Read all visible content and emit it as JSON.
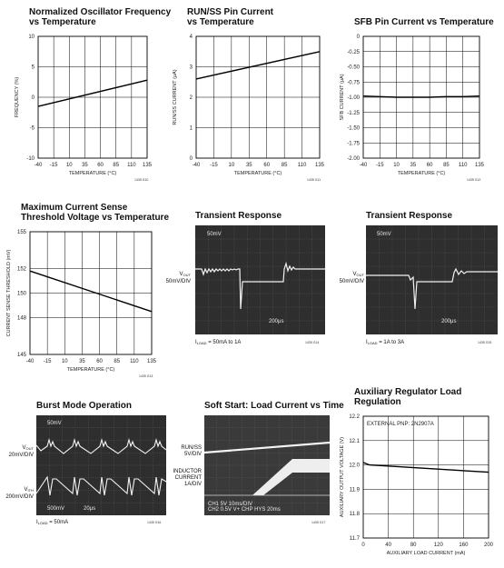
{
  "chart_data": [
    {
      "id": "p1",
      "type": "line",
      "title": [
        "Normalized Oscillator Frequency",
        "vs Temperature"
      ],
      "xlabel": "TEMPERATURE (°C)",
      "ylabel": "FREQUENCY (%)",
      "xlim": [
        -40,
        135
      ],
      "ylim": [
        -10,
        10
      ],
      "xticks": [
        "-40",
        "-15",
        "10",
        "35",
        "60",
        "85",
        "110",
        "135"
      ],
      "yticks": [
        "10",
        "5",
        "0",
        "-5",
        "-10"
      ],
      "series": [
        {
          "x": [
            -40,
            135
          ],
          "y": [
            -1.5,
            2.8
          ]
        }
      ],
      "code": "1435 G10"
    },
    {
      "id": "p2",
      "type": "line",
      "title": [
        "RUN/SS Pin Current",
        "vs Temperature"
      ],
      "xlabel": "TEMPERATURE (°C)",
      "ylabel": "RUN/SS CURRENT (μA)",
      "xlim": [
        -40,
        135
      ],
      "ylim": [
        0,
        4
      ],
      "xticks": [
        "-40",
        "-15",
        "10",
        "35",
        "60",
        "85",
        "110",
        "135"
      ],
      "yticks": [
        "4",
        "3",
        "2",
        "1",
        "0"
      ],
      "series": [
        {
          "x": [
            -40,
            135
          ],
          "y": [
            2.6,
            3.5
          ]
        }
      ],
      "code": "1435 G11"
    },
    {
      "id": "p3",
      "type": "line",
      "title": [
        "SFB Pin Current vs Temperature"
      ],
      "xlabel": "TEMPERATURE (°C)",
      "ylabel": "SFB CURRENT (μA)",
      "xlim": [
        -40,
        135
      ],
      "ylim": [
        -2.0,
        0
      ],
      "xticks": [
        "-40",
        "-15",
        "10",
        "35",
        "60",
        "85",
        "110",
        "135"
      ],
      "yticks": [
        "0",
        "-0.25",
        "-0.50",
        "-0.75",
        "-1.00",
        "-1.25",
        "-1.50",
        "-1.75",
        "-2.00"
      ],
      "series": [
        {
          "x": [
            -40,
            -15,
            10,
            35,
            60,
            85,
            110,
            135
          ],
          "y": [
            -0.98,
            -0.99,
            -1.0,
            -1.0,
            -1.0,
            -0.99,
            -0.99,
            -0.98
          ]
        }
      ],
      "code": "1435 G12"
    },
    {
      "id": "p4",
      "type": "line",
      "title": [
        "Maximum Current Sense",
        "Threshold Voltage vs Temperature"
      ],
      "xlabel": "TEMPERATURE (°C)",
      "ylabel": "CURRENT SENSE THRESHOLD (mV)",
      "xlim": [
        -40,
        135
      ],
      "ylim": [
        145,
        155
      ],
      "xticks": [
        "-40",
        "-15",
        "10",
        "35",
        "60",
        "85",
        "110",
        "135"
      ],
      "yticks": [
        "155",
        "152",
        "150",
        "148",
        "145"
      ],
      "ytickvals": [
        155,
        152,
        150,
        148,
        145
      ],
      "series": [
        {
          "x": [
            -40,
            135
          ],
          "y": [
            151.8,
            148.5
          ]
        }
      ],
      "code": "1435 G13"
    },
    {
      "id": "p9",
      "type": "line",
      "title": [
        "Auxiliary Regulator Load",
        "Regulation"
      ],
      "xlabel": "AUXILIARY LOAD CURRENT (mA)",
      "ylabel": "AUXILIARY OUTPUT VOLTAGE (V)",
      "xlim": [
        0,
        200
      ],
      "ylim": [
        11.7,
        12.2
      ],
      "xticks": [
        "0",
        "40",
        "80",
        "120",
        "160",
        "200"
      ],
      "yticks": [
        "12.2",
        "12.1",
        "12.0",
        "11.9",
        "11.8",
        "11.7"
      ],
      "annotation": "EXTERNAL PNP: 2N2907A",
      "series": [
        {
          "x": [
            0,
            10,
            200
          ],
          "y": [
            12.01,
            12.0,
            11.97
          ]
        }
      ],
      "code": ""
    }
  ],
  "scopes": {
    "transient1": {
      "title": "Transient Response",
      "label_main": "V",
      "label_sub": "OUT",
      "label_scale": "50mV/DIV",
      "corner_top": "50mV",
      "corner_bottom": "200μs",
      "caption_main": "I",
      "caption_sub": "LOAD",
      "caption_rest": " = 50mA to 1A",
      "code": "1435 G14"
    },
    "transient2": {
      "title": "Transient Response",
      "label_main": "V",
      "label_sub": "OUT",
      "label_scale": "50mV/DIV",
      "corner_top": "50mV",
      "corner_bottom": "200μs",
      "caption_main": "I",
      "caption_sub": "LOAD",
      "caption_rest": " = 1A to 3A",
      "code": "1435 G15"
    },
    "burst": {
      "title": "Burst Mode Operation",
      "label1_main": "V",
      "label1_sub": "OUT",
      "label1_scale": "20mV/DIV",
      "label2_main": "V",
      "label2_sub": "ITH",
      "label2_scale": "200mV/DIV",
      "corner_top": "50mV",
      "corner_b1": "500mV",
      "corner_b2": "20μs",
      "caption_main": "I",
      "caption_sub": "LOAD",
      "caption_rest": " = 50mA",
      "code": "1435 G16"
    },
    "softstart": {
      "title": "Soft Start: Load Current vs Time",
      "label1_line1": "RUN/SS",
      "label1_line2": "5V/DIV",
      "label2_line1": "INDUCTOR",
      "label2_line2": "CURRENT",
      "label2_line3": "1A/DIV",
      "status_row1": "CH1     5V       10ms/DIV",
      "status_row2": "CH2   0.5V   V+    CHP   HYS   20ms",
      "code": "1435 G17"
    }
  }
}
